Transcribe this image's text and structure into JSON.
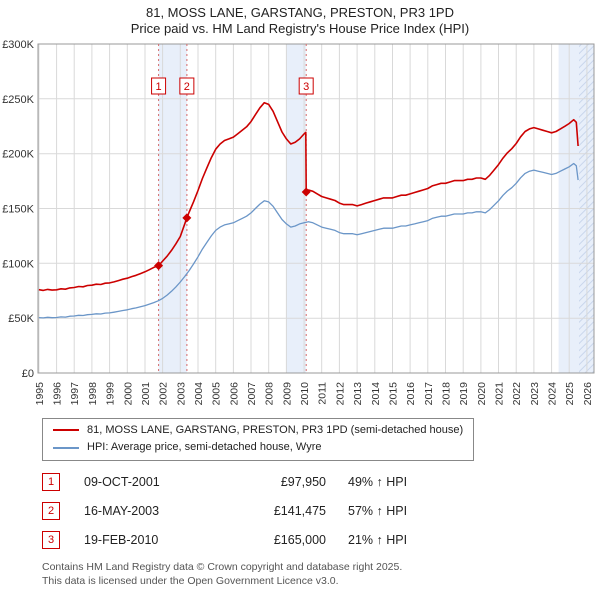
{
  "title": {
    "line1": "81, MOSS LANE, GARSTANG, PRESTON, PR3 1PD",
    "line2": "Price paid vs. HM Land Registry's House Price Index (HPI)"
  },
  "chart_data": {
    "type": "line",
    "xlim": [
      1994.95,
      2026.4
    ],
    "ylim": [
      0,
      300
    ],
    "y_unit": "GBP thousands",
    "x_ticks": [
      1995,
      1996,
      1997,
      1998,
      1999,
      2000,
      2001,
      2002,
      2003,
      2004,
      2005,
      2006,
      2007,
      2008,
      2009,
      2010,
      2011,
      2012,
      2013,
      2014,
      2015,
      2016,
      2017,
      2018,
      2019,
      2020,
      2021,
      2022,
      2023,
      2024,
      2025,
      2026
    ],
    "y_ticks": [
      {
        "v": 0,
        "label": "£0"
      },
      {
        "v": 50,
        "label": "£50K"
      },
      {
        "v": 100,
        "label": "£100K"
      },
      {
        "v": 150,
        "label": "£150K"
      },
      {
        "v": 200,
        "label": "£200K"
      },
      {
        "v": 250,
        "label": "£250K"
      },
      {
        "v": 300,
        "label": "£300K"
      }
    ],
    "grid": true,
    "colors": {
      "grid": "#d9d9d9",
      "border": "#999999",
      "band": "#e8effa",
      "hatch": "#c9d6ec",
      "sale_line": "#d46a6a",
      "marker": "#cc0000"
    },
    "bands": [
      [
        2001.77,
        2003.37
      ],
      [
        2009.0,
        2010.12
      ],
      [
        2024.4,
        2026.4
      ]
    ],
    "hatch_band": [
      2025.55,
      2026.4
    ],
    "sale_markers": [
      {
        "n": "1",
        "x": 2001.77,
        "y": 97.95
      },
      {
        "n": "2",
        "x": 2003.37,
        "y": 141.475
      },
      {
        "n": "3",
        "x": 2010.12,
        "y": 165
      }
    ],
    "series": [
      {
        "name": "81, MOSS LANE, GARSTANG, PRESTON, PR3 1PD (semi-detached house)",
        "color": "#cc0000",
        "width": 1.6,
        "points": [
          [
            1995,
            76
          ],
          [
            1995.25,
            75.3
          ],
          [
            1995.5,
            76.2
          ],
          [
            1995.75,
            75.6
          ],
          [
            1996,
            75.9
          ],
          [
            1996.25,
            76.8
          ],
          [
            1996.5,
            76.4
          ],
          [
            1996.75,
            77.6
          ],
          [
            1997,
            78
          ],
          [
            1997.25,
            78.9
          ],
          [
            1997.5,
            78.6
          ],
          [
            1997.75,
            79.8
          ],
          [
            1998,
            80.1
          ],
          [
            1998.25,
            81
          ],
          [
            1998.5,
            80.7
          ],
          [
            1998.75,
            81.9
          ],
          [
            1999,
            82.2
          ],
          [
            1999.25,
            83.1
          ],
          [
            1999.5,
            84.3
          ],
          [
            1999.75,
            85.5
          ],
          [
            2000,
            86.4
          ],
          [
            2000.25,
            87.9
          ],
          [
            2000.5,
            89.1
          ],
          [
            2000.75,
            90.6
          ],
          [
            2001,
            92.3
          ],
          [
            2001.25,
            94.2
          ],
          [
            2001.5,
            96.3
          ],
          [
            2001.77,
            97.95
          ],
          [
            2002,
            102
          ],
          [
            2002.25,
            106.5
          ],
          [
            2002.5,
            111.8
          ],
          [
            2002.75,
            117.8
          ],
          [
            2003,
            124.5
          ],
          [
            2003.37,
            141.5
          ],
          [
            2003.5,
            146.8
          ],
          [
            2003.75,
            156.2
          ],
          [
            2004,
            166.4
          ],
          [
            2004.25,
            177.4
          ],
          [
            2004.5,
            186.8
          ],
          [
            2004.75,
            196.3
          ],
          [
            2005,
            204.1
          ],
          [
            2005.25,
            208.8
          ],
          [
            2005.5,
            212
          ],
          [
            2005.75,
            213.5
          ],
          [
            2006,
            215.1
          ],
          [
            2006.25,
            218.2
          ],
          [
            2006.5,
            221.4
          ],
          [
            2006.75,
            224.5
          ],
          [
            2007,
            229.2
          ],
          [
            2007.25,
            235.5
          ],
          [
            2007.5,
            241.8
          ],
          [
            2007.75,
            246.5
          ],
          [
            2008,
            244.9
          ],
          [
            2008.25,
            238.6
          ],
          [
            2008.5,
            229.2
          ],
          [
            2008.75,
            219.8
          ],
          [
            2009,
            213.5
          ],
          [
            2009.25,
            208.8
          ],
          [
            2009.5,
            210.4
          ],
          [
            2009.75,
            213.5
          ],
          [
            2010,
            218
          ],
          [
            2010.1,
            219.5
          ],
          [
            2010.12,
            165
          ],
          [
            2010.25,
            166.9
          ],
          [
            2010.5,
            165.7
          ],
          [
            2010.75,
            163.3
          ],
          [
            2011,
            160.9
          ],
          [
            2011.25,
            159.7
          ],
          [
            2011.5,
            158.5
          ],
          [
            2011.75,
            157.3
          ],
          [
            2012,
            154.9
          ],
          [
            2012.25,
            153.6
          ],
          [
            2012.5,
            153.6
          ],
          [
            2012.75,
            153.6
          ],
          [
            2013,
            152.4
          ],
          [
            2013.25,
            153.6
          ],
          [
            2013.5,
            154.9
          ],
          [
            2013.75,
            156.1
          ],
          [
            2014,
            157.3
          ],
          [
            2014.25,
            158.5
          ],
          [
            2014.5,
            159.7
          ],
          [
            2014.75,
            159.7
          ],
          [
            2015,
            159.7
          ],
          [
            2015.25,
            160.9
          ],
          [
            2015.5,
            162.1
          ],
          [
            2015.75,
            162.1
          ],
          [
            2016,
            163.3
          ],
          [
            2016.25,
            164.6
          ],
          [
            2016.5,
            165.8
          ],
          [
            2016.75,
            167
          ],
          [
            2017,
            168.2
          ],
          [
            2017.25,
            170.6
          ],
          [
            2017.5,
            171.8
          ],
          [
            2017.75,
            173
          ],
          [
            2018,
            173
          ],
          [
            2018.25,
            174.2
          ],
          [
            2018.5,
            175.4
          ],
          [
            2018.75,
            175.4
          ],
          [
            2019,
            175.4
          ],
          [
            2019.25,
            176.6
          ],
          [
            2019.5,
            176.6
          ],
          [
            2019.75,
            177.8
          ],
          [
            2020,
            177.8
          ],
          [
            2020.25,
            176.6
          ],
          [
            2020.5,
            180.3
          ],
          [
            2020.75,
            185.1
          ],
          [
            2021,
            190
          ],
          [
            2021.25,
            196
          ],
          [
            2021.5,
            200.8
          ],
          [
            2021.75,
            204.5
          ],
          [
            2022,
            209.3
          ],
          [
            2022.25,
            215.4
          ],
          [
            2022.5,
            220.2
          ],
          [
            2022.75,
            222.6
          ],
          [
            2023,
            223.8
          ],
          [
            2023.25,
            222.6
          ],
          [
            2023.5,
            221.4
          ],
          [
            2023.75,
            220.2
          ],
          [
            2024,
            219
          ],
          [
            2024.25,
            220.2
          ],
          [
            2024.5,
            222.6
          ],
          [
            2024.75,
            225
          ],
          [
            2025,
            227.5
          ],
          [
            2025.25,
            231
          ],
          [
            2025.4,
            228.6
          ],
          [
            2025.5,
            207
          ]
        ]
      },
      {
        "name": "HPI: Average price, semi-detached house, Wyre",
        "color": "#6b96c8",
        "width": 1.3,
        "points": [
          [
            1995,
            50.5
          ],
          [
            1995.25,
            50.2
          ],
          [
            1995.5,
            50.8
          ],
          [
            1995.75,
            50.4
          ],
          [
            1996,
            50.6
          ],
          [
            1996.25,
            51.2
          ],
          [
            1996.5,
            51
          ],
          [
            1996.75,
            51.8
          ],
          [
            1997,
            52
          ],
          [
            1997.25,
            52.6
          ],
          [
            1997.5,
            52.4
          ],
          [
            1997.75,
            53.2
          ],
          [
            1998,
            53.4
          ],
          [
            1998.25,
            54
          ],
          [
            1998.5,
            53.8
          ],
          [
            1998.75,
            54.6
          ],
          [
            1999,
            54.8
          ],
          [
            1999.25,
            55.4
          ],
          [
            1999.5,
            56.2
          ],
          [
            1999.75,
            57
          ],
          [
            2000,
            57.6
          ],
          [
            2000.25,
            58.6
          ],
          [
            2000.5,
            59.4
          ],
          [
            2000.75,
            60.4
          ],
          [
            2001,
            61.5
          ],
          [
            2001.25,
            62.8
          ],
          [
            2001.5,
            64.2
          ],
          [
            2001.75,
            65.8
          ],
          [
            2002,
            68
          ],
          [
            2002.25,
            71
          ],
          [
            2002.5,
            74.5
          ],
          [
            2002.75,
            78.5
          ],
          [
            2003,
            83
          ],
          [
            2003.25,
            88
          ],
          [
            2003.5,
            93.5
          ],
          [
            2003.75,
            99.5
          ],
          [
            2004,
            106
          ],
          [
            2004.25,
            113
          ],
          [
            2004.5,
            119
          ],
          [
            2004.75,
            125
          ],
          [
            2005,
            130
          ],
          [
            2005.25,
            133
          ],
          [
            2005.5,
            135
          ],
          [
            2005.75,
            136
          ],
          [
            2006,
            137
          ],
          [
            2006.25,
            139
          ],
          [
            2006.5,
            141
          ],
          [
            2006.75,
            143
          ],
          [
            2007,
            146
          ],
          [
            2007.25,
            150
          ],
          [
            2007.5,
            154
          ],
          [
            2007.75,
            157
          ],
          [
            2008,
            156
          ],
          [
            2008.25,
            152
          ],
          [
            2008.5,
            146
          ],
          [
            2008.75,
            140
          ],
          [
            2009,
            136
          ],
          [
            2009.25,
            133
          ],
          [
            2009.5,
            134
          ],
          [
            2009.75,
            136
          ],
          [
            2010,
            137
          ],
          [
            2010.25,
            138
          ],
          [
            2010.5,
            137
          ],
          [
            2010.75,
            135
          ],
          [
            2011,
            133
          ],
          [
            2011.25,
            132
          ],
          [
            2011.5,
            131
          ],
          [
            2011.75,
            130
          ],
          [
            2012,
            128
          ],
          [
            2012.25,
            127
          ],
          [
            2012.5,
            127
          ],
          [
            2012.75,
            127
          ],
          [
            2013,
            126
          ],
          [
            2013.25,
            127
          ],
          [
            2013.5,
            128
          ],
          [
            2013.75,
            129
          ],
          [
            2014,
            130
          ],
          [
            2014.25,
            131
          ],
          [
            2014.5,
            132
          ],
          [
            2014.75,
            132
          ],
          [
            2015,
            132
          ],
          [
            2015.25,
            133
          ],
          [
            2015.5,
            134
          ],
          [
            2015.75,
            134
          ],
          [
            2016,
            135
          ],
          [
            2016.25,
            136
          ],
          [
            2016.5,
            137
          ],
          [
            2016.75,
            138
          ],
          [
            2017,
            139
          ],
          [
            2017.25,
            141
          ],
          [
            2017.5,
            142
          ],
          [
            2017.75,
            143
          ],
          [
            2018,
            143
          ],
          [
            2018.25,
            144
          ],
          [
            2018.5,
            145
          ],
          [
            2018.75,
            145
          ],
          [
            2019,
            145
          ],
          [
            2019.25,
            146
          ],
          [
            2019.5,
            146
          ],
          [
            2019.75,
            147
          ],
          [
            2020,
            147
          ],
          [
            2020.25,
            146
          ],
          [
            2020.5,
            149
          ],
          [
            2020.75,
            153
          ],
          [
            2021,
            157
          ],
          [
            2021.25,
            162
          ],
          [
            2021.5,
            166
          ],
          [
            2021.75,
            169
          ],
          [
            2022,
            173
          ],
          [
            2022.25,
            178
          ],
          [
            2022.5,
            182
          ],
          [
            2022.75,
            184
          ],
          [
            2023,
            185
          ],
          [
            2023.25,
            184
          ],
          [
            2023.5,
            183
          ],
          [
            2023.75,
            182
          ],
          [
            2024,
            181
          ],
          [
            2024.25,
            182
          ],
          [
            2024.5,
            184
          ],
          [
            2024.75,
            186
          ],
          [
            2025,
            188
          ],
          [
            2025.25,
            191
          ],
          [
            2025.4,
            189
          ],
          [
            2025.5,
            176
          ]
        ]
      }
    ]
  },
  "legend": {
    "items": [
      {
        "label": "81, MOSS LANE, GARSTANG, PRESTON, PR3 1PD (semi-detached house)",
        "color": "#cc0000"
      },
      {
        "label": "HPI: Average price, semi-detached house, Wyre",
        "color": "#6b96c8"
      }
    ]
  },
  "transactions": [
    {
      "n": "1",
      "date": "09-OCT-2001",
      "price": "£97,950",
      "hpi": "49% ↑ HPI"
    },
    {
      "n": "2",
      "date": "16-MAY-2003",
      "price": "£141,475",
      "hpi": "57% ↑ HPI"
    },
    {
      "n": "3",
      "date": "19-FEB-2010",
      "price": "£165,000",
      "hpi": "21% ↑ HPI"
    }
  ],
  "footer": {
    "line1": "Contains HM Land Registry data © Crown copyright and database right 2025.",
    "line2": "This data is licensed under the Open Government Licence v3.0."
  }
}
